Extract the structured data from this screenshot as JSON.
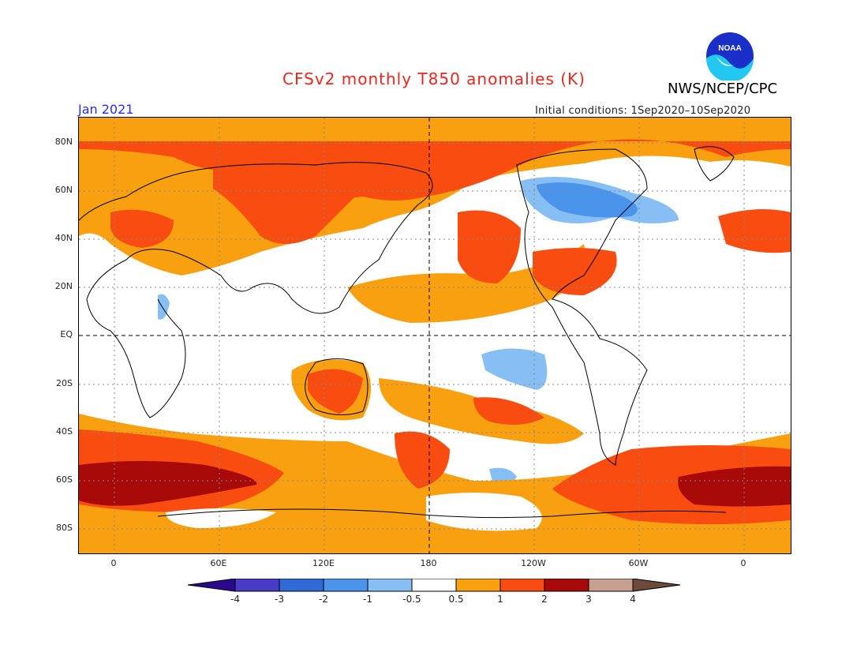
{
  "header": {
    "title": "CFSv2 monthly T850 anomalies (K)",
    "org": "NWS/NCEP/CPC",
    "date": "Jan 2021",
    "initial_conditions": "Initial conditions: 1Sep2020–10Sep2020",
    "logo_text": "NOAA"
  },
  "axes": {
    "lat_labels": [
      "80N",
      "60N",
      "40N",
      "20N",
      "EQ",
      "20S",
      "40S",
      "60S",
      "80S"
    ],
    "lon_labels": [
      "0",
      "60E",
      "120E",
      "180",
      "120W",
      "60W",
      "0"
    ]
  },
  "colorbar": {
    "labels": [
      "-4",
      "-3",
      "-2",
      "-1",
      "-0.5",
      "0.5",
      "1",
      "2",
      "3",
      "4"
    ],
    "colors": [
      "#2a0a8a",
      "#4a3ac8",
      "#2f6ad8",
      "#4a94ec",
      "#87bff5",
      "#ffffff",
      "#f8a010",
      "#f84c10",
      "#a80a0a",
      "#c8a090",
      "#6e4a3a"
    ]
  },
  "colors": {
    "title": "#e8261e",
    "date": "#2a2ae0",
    "orange": "#f8a010",
    "red": "#f84c10",
    "darkred": "#a80a0a",
    "blue": "#4a94ec",
    "medblue": "#2f6ad8"
  }
}
